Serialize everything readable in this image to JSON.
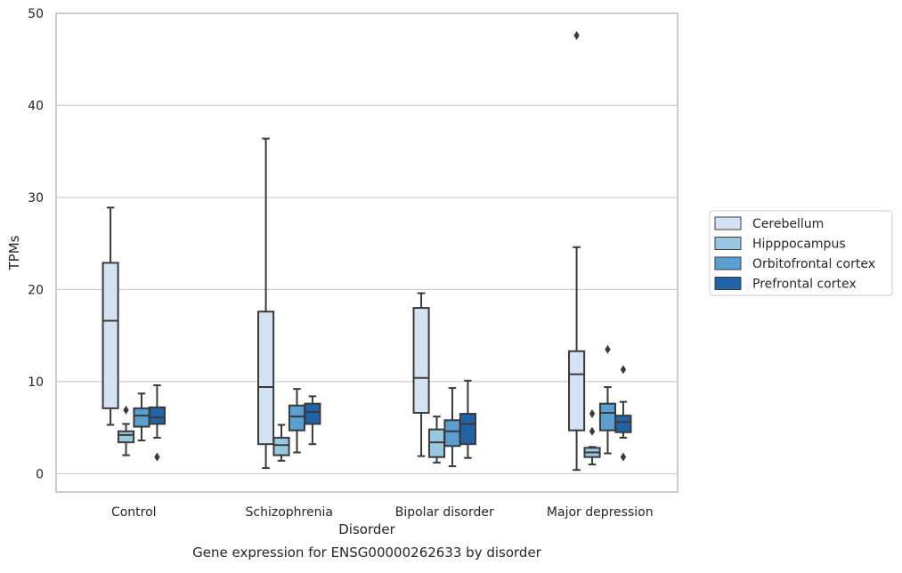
{
  "chart_data": {
    "type": "box",
    "title": "",
    "caption": "Gene expression for ENSG00000262633 by disorder",
    "xlabel": "Disorder",
    "ylabel": "TPMs",
    "ylim": [
      -2,
      50
    ],
    "yticks": [
      0,
      10,
      20,
      30,
      40,
      50
    ],
    "grid": "horizontal",
    "legend_position": "right",
    "categories": [
      "Control",
      "Schizophrenia",
      "Bipolar disorder",
      "Major depression"
    ],
    "series": [
      {
        "name": "Cerebellum",
        "color": "#d4e3f3",
        "boxes": [
          {
            "whisker_low": 5.3,
            "q1": 7.1,
            "median": 16.6,
            "q3": 22.9,
            "whisker_high": 28.9,
            "outliers": []
          },
          {
            "whisker_low": 0.6,
            "q1": 3.2,
            "median": 9.4,
            "q3": 17.6,
            "whisker_high": 36.4,
            "outliers": []
          },
          {
            "whisker_low": 1.9,
            "q1": 6.6,
            "median": 10.4,
            "q3": 18.0,
            "whisker_high": 19.6,
            "outliers": []
          },
          {
            "whisker_low": 0.4,
            "q1": 4.7,
            "median": 10.8,
            "q3": 13.3,
            "whisker_high": 24.6,
            "outliers": [
              47.6
            ]
          }
        ]
      },
      {
        "name": "Hipppocampus",
        "color": "#9ac7e0",
        "boxes": [
          {
            "whisker_low": 2.0,
            "q1": 3.4,
            "median": 4.2,
            "q3": 4.6,
            "whisker_high": 5.4,
            "outliers": [
              6.9
            ]
          },
          {
            "whisker_low": 1.4,
            "q1": 2.0,
            "median": 3.1,
            "q3": 3.9,
            "whisker_high": 5.3,
            "outliers": []
          },
          {
            "whisker_low": 1.2,
            "q1": 1.8,
            "median": 3.4,
            "q3": 4.8,
            "whisker_high": 6.2,
            "outliers": []
          },
          {
            "whisker_low": 1.0,
            "q1": 1.8,
            "median": 2.3,
            "q3": 2.8,
            "whisker_high": 2.9,
            "outliers": [
              4.6,
              6.5
            ]
          }
        ]
      },
      {
        "name": "Orbitofrontal cortex",
        "color": "#5a9fcf",
        "boxes": [
          {
            "whisker_low": 3.6,
            "q1": 5.1,
            "median": 6.3,
            "q3": 7.1,
            "whisker_high": 8.7,
            "outliers": []
          },
          {
            "whisker_low": 2.3,
            "q1": 4.7,
            "median": 6.2,
            "q3": 7.4,
            "whisker_high": 9.2,
            "outliers": []
          },
          {
            "whisker_low": 0.8,
            "q1": 3.0,
            "median": 4.6,
            "q3": 5.8,
            "whisker_high": 9.3,
            "outliers": []
          },
          {
            "whisker_low": 2.2,
            "q1": 4.7,
            "median": 6.6,
            "q3": 7.6,
            "whisker_high": 9.4,
            "outliers": [
              13.5
            ]
          }
        ]
      },
      {
        "name": "Prefrontal cortex",
        "color": "#2163a4",
        "boxes": [
          {
            "whisker_low": 3.9,
            "q1": 5.4,
            "median": 6.1,
            "q3": 7.2,
            "whisker_high": 9.6,
            "outliers": [
              1.8
            ]
          },
          {
            "whisker_low": 3.2,
            "q1": 5.4,
            "median": 6.7,
            "q3": 7.6,
            "whisker_high": 8.4,
            "outliers": []
          },
          {
            "whisker_low": 1.7,
            "q1": 3.2,
            "median": 5.4,
            "q3": 6.5,
            "whisker_high": 10.1,
            "outliers": []
          },
          {
            "whisker_low": 3.9,
            "q1": 4.5,
            "median": 5.6,
            "q3": 6.3,
            "whisker_high": 7.8,
            "outliers": [
              1.8,
              11.3
            ]
          }
        ]
      }
    ]
  }
}
